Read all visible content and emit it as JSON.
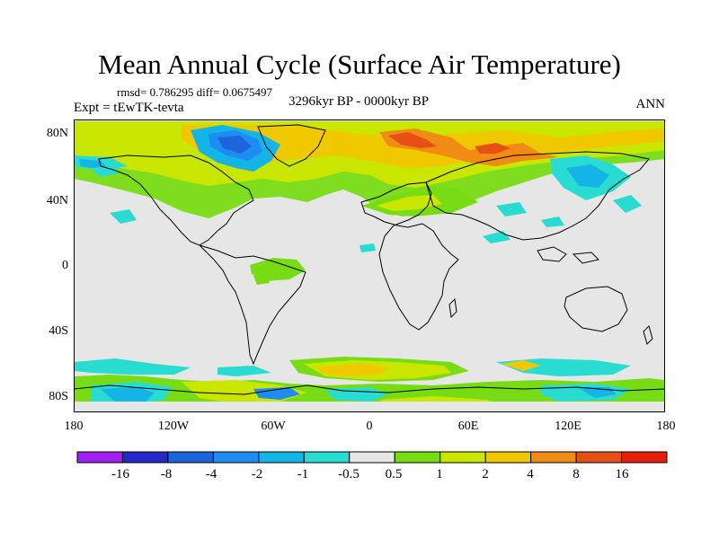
{
  "figure": {
    "title": "Mean Annual Cycle (Surface Air Temperature)",
    "stats": "rmsd= 0.786295 diff= 0.0675497",
    "experiment": "Expt = tEwTK-tevta",
    "period": "3296kyr BP - 0000kyr BP",
    "season": "ANN"
  },
  "axes": {
    "lat_labels": [
      "80N",
      "40N",
      "0",
      "40S",
      "80S"
    ],
    "lon_labels": [
      "180",
      "120W",
      "60W",
      "0",
      "60E",
      "120E",
      "180"
    ]
  },
  "colorbar": {
    "labels": [
      "-16",
      "-8",
      "-4",
      "-2",
      "-1",
      "-0.5",
      "0.5",
      "1",
      "2",
      "4",
      "8",
      "16"
    ],
    "colors": [
      "#a020f0",
      "#2828c8",
      "#1e64dc",
      "#1e8cf0",
      "#14b4e6",
      "#28dcd2",
      "#e6e6e6",
      "#78dc14",
      "#c8e600",
      "#f0c800",
      "#f08c14",
      "#e65014",
      "#e61e0a"
    ]
  }
}
